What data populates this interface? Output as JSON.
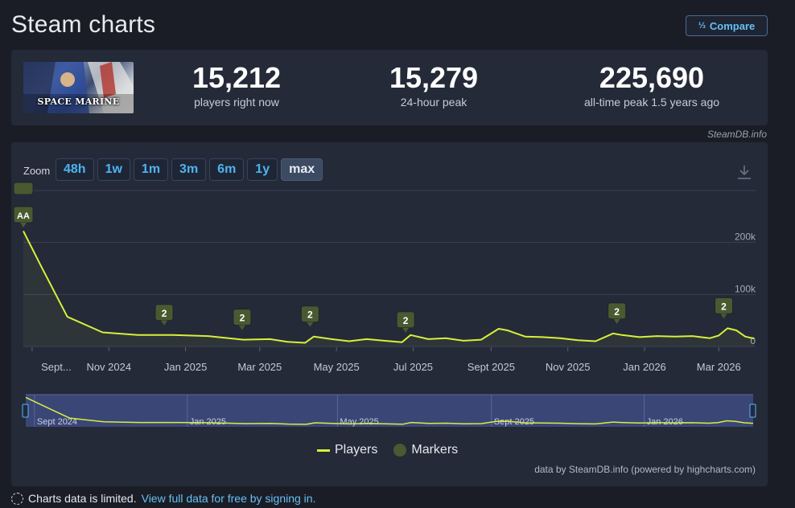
{
  "page": {
    "title": "Steam charts"
  },
  "compare": {
    "label": "Compare",
    "icon": "compare-icon"
  },
  "game": {
    "cover_title": "SPACE MARINE"
  },
  "stats": [
    {
      "value": "15,212",
      "label": "players right now"
    },
    {
      "value": "15,279",
      "label": "24-hour peak"
    },
    {
      "value": "225,690",
      "label": "all-time peak 1.5 years ago"
    }
  ],
  "credit_top": "SteamDB.info",
  "zoom": {
    "label": "Zoom",
    "options": [
      "48h",
      "1w",
      "1m",
      "3m",
      "6m",
      "1y",
      "max"
    ],
    "active": "max"
  },
  "colors": {
    "line": "#d8ef3c",
    "marker": "#4a5a30",
    "accent": "#66c0f4"
  },
  "chart_data": {
    "type": "line",
    "title": "",
    "xlabel": "",
    "ylabel": "",
    "ylim": [
      0,
      300000
    ],
    "yticks": [
      0,
      100000,
      200000
    ],
    "yticklabels": [
      "0",
      "100k",
      "200k"
    ],
    "xticks": [
      "2024-09-01",
      "2024-11-01",
      "2025-01-01",
      "2025-03-01",
      "2025-05-01",
      "2025-07-01",
      "2025-09-01",
      "2025-11-01",
      "2026-01-01",
      "2026-03-01"
    ],
    "xticklabels": [
      "Sept...",
      "Nov 2024",
      "Jan 2025",
      "Mar 2025",
      "May 2025",
      "Jul 2025",
      "Sept 2025",
      "Nov 2025",
      "Jan 2026",
      "Mar 2026"
    ],
    "grid": true,
    "series": [
      {
        "name": "Players",
        "x": [
          "2024-08-25",
          "2024-09-08",
          "2024-09-29",
          "2024-10-27",
          "2024-11-24",
          "2024-12-22",
          "2025-01-19",
          "2025-02-16",
          "2025-03-09",
          "2025-03-23",
          "2025-04-06",
          "2025-04-13",
          "2025-04-27",
          "2025-05-11",
          "2025-05-25",
          "2025-06-08",
          "2025-06-22",
          "2025-06-29",
          "2025-07-13",
          "2025-07-27",
          "2025-08-10",
          "2025-08-24",
          "2025-09-07",
          "2025-09-14",
          "2025-09-28",
          "2025-10-12",
          "2025-10-26",
          "2025-11-09",
          "2025-11-23",
          "2025-12-07",
          "2025-12-14",
          "2025-12-28",
          "2026-01-11",
          "2026-01-25",
          "2026-02-08",
          "2026-02-22",
          "2026-03-01",
          "2026-03-08",
          "2026-03-15",
          "2026-03-22",
          "2026-03-29"
        ],
        "values": [
          222000,
          155000,
          57000,
          27000,
          22000,
          22000,
          20000,
          13000,
          14000,
          9000,
          7000,
          19000,
          14000,
          10000,
          14000,
          11000,
          8000,
          22000,
          14000,
          16000,
          11000,
          13000,
          34000,
          31000,
          19000,
          18000,
          16000,
          12000,
          10000,
          25000,
          22000,
          18000,
          20000,
          19000,
          20000,
          16000,
          21000,
          35000,
          31000,
          19000,
          15212
        ]
      }
    ],
    "markers": [
      {
        "label": "AA",
        "x": "2024-08-25"
      },
      {
        "label": "2",
        "x": "2024-12-15"
      },
      {
        "label": "2",
        "x": "2025-02-15"
      },
      {
        "label": "2",
        "x": "2025-04-10"
      },
      {
        "label": "2",
        "x": "2025-06-25"
      },
      {
        "label": "2",
        "x": "2025-12-10"
      },
      {
        "label": "2",
        "x": "2026-03-05"
      }
    ],
    "navigator_labels": [
      "Sept 2024",
      "Jan 2025",
      "May 2025",
      "Sept 2025",
      "Jan 2026"
    ],
    "legend": [
      "Players",
      "Markers"
    ],
    "legend_position": "bottom"
  },
  "credit_bottom": "data by SteamDB.info (powered by highcharts.com)",
  "notice": {
    "text": "Charts data is limited.",
    "link": "View full data for free by signing in."
  }
}
